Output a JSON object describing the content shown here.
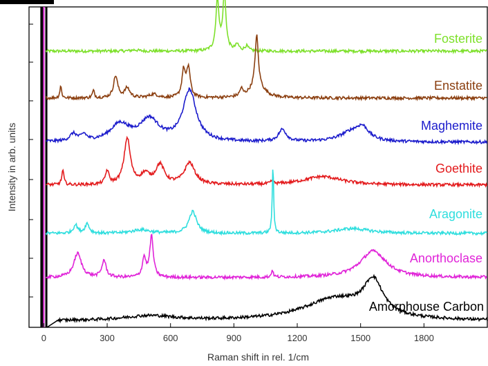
{
  "chart_data": {
    "type": "line",
    "title": "",
    "xlabel": "Raman shift in rel. 1/cm",
    "ylabel": "Intensity in arb. units",
    "xlim": [
      -70,
      2100
    ],
    "x_ticks": [
      0,
      300,
      600,
      900,
      1200,
      1500,
      1800
    ],
    "x_tick_labels": [
      "0",
      "300",
      "600",
      "900",
      "1200",
      "1500",
      "1800"
    ],
    "y_ticks_labeled": false,
    "grid": false,
    "legend": "inline labels at right end of each trace",
    "series": [
      {
        "name": "Fosterite",
        "color": "#7de02a",
        "peaks": [
          [
            822,
            2.1,
            9
          ],
          [
            855,
            2.3,
            9
          ],
          [
            916,
            0.25,
            10
          ],
          [
            960,
            0.2,
            10
          ],
          [
            430,
            0.05,
            20
          ]
        ]
      },
      {
        "name": "Enstatite",
        "color": "#8b3f10",
        "peaks": [
          [
            80,
            0.5,
            5
          ],
          [
            235,
            0.3,
            6
          ],
          [
            340,
            0.9,
            12
          ],
          [
            395,
            0.4,
            15
          ],
          [
            520,
            0.15,
            25
          ],
          [
            662,
            1.1,
            10
          ],
          [
            685,
            1.2,
            10
          ],
          [
            935,
            0.3,
            8
          ],
          [
            1008,
            2.1,
            9
          ],
          [
            1010,
            0.5,
            40
          ]
        ]
      },
      {
        "name": "Maghemite",
        "color": "#1c1ccc",
        "peaks": [
          [
            -40,
            1.0,
            6
          ],
          [
            140,
            0.3,
            20
          ],
          [
            190,
            0.25,
            15
          ],
          [
            360,
            0.7,
            55
          ],
          [
            500,
            0.9,
            55
          ],
          [
            690,
            2.1,
            38
          ],
          [
            1130,
            0.5,
            22
          ],
          [
            1460,
            0.4,
            70
          ],
          [
            1510,
            0.45,
            35
          ]
        ]
      },
      {
        "name": "Goethite",
        "color": "#e31a1c",
        "peaks": [
          [
            -40,
            1.2,
            5
          ],
          [
            90,
            0.6,
            6
          ],
          [
            300,
            0.55,
            10
          ],
          [
            395,
            1.9,
            18
          ],
          [
            480,
            0.4,
            25
          ],
          [
            550,
            0.8,
            25
          ],
          [
            690,
            0.9,
            30
          ],
          [
            1080,
            0.1,
            8
          ],
          [
            1320,
            0.35,
            110
          ]
        ]
      },
      {
        "name": "Aragonite",
        "color": "#2fdede",
        "peaks": [
          [
            -40,
            0.4,
            5
          ],
          [
            150,
            0.35,
            12
          ],
          [
            205,
            0.4,
            12
          ],
          [
            460,
            0.15,
            50
          ],
          [
            705,
            0.9,
            22
          ],
          [
            1085,
            2.8,
            4
          ],
          [
            1460,
            0.2,
            100
          ]
        ]
      },
      {
        "name": "Anorthoclase",
        "color": "#e023d8",
        "peaks": [
          [
            160,
            1.0,
            22
          ],
          [
            285,
            0.7,
            12
          ],
          [
            475,
            0.8,
            10
          ],
          [
            510,
            1.7,
            10
          ],
          [
            1082,
            0.3,
            5
          ],
          [
            1560,
            1.1,
            75
          ]
        ]
      },
      {
        "name": "Amorphouse Carbon",
        "color": "#000000",
        "peaks": [
          [
            1380,
            0.9,
            180
          ],
          [
            1560,
            1.4,
            55
          ],
          [
            500,
            0.2,
            150
          ]
        ]
      }
    ],
    "labels": [
      "Fosterite",
      "Enstatite",
      "Maghemite",
      "Goethite",
      "Aragonite",
      "Anorthoclase",
      "Amorphouse Carbon"
    ]
  }
}
